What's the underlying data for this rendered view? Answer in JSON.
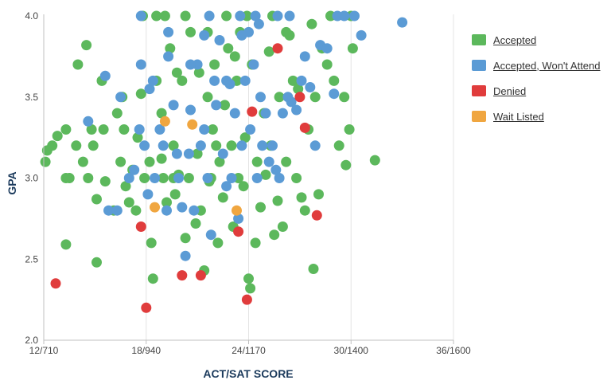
{
  "chart_data": {
    "type": "scatter",
    "xlabel": "ACT/SAT SCORE",
    "ylabel": "GPA",
    "xlim": [
      12,
      36
    ],
    "ylim": [
      2.0,
      4.0
    ],
    "x_tick_labels": [
      "12/710",
      "18/940",
      "24/1170",
      "30/1400",
      "36/1600"
    ],
    "x_tick_values": [
      12,
      18,
      24,
      30,
      36
    ],
    "y_tick_labels": [
      "2.0",
      "2.5",
      "3.0",
      "3.5",
      "4.0"
    ],
    "y_tick_values": [
      2.0,
      2.5,
      3.0,
      3.5,
      4.0
    ],
    "grid": "vertical",
    "legend_position": "right",
    "series": [
      {
        "name": "Accepted",
        "color": "#5cb85c",
        "points": [
          [
            12.1,
            3.1
          ],
          [
            12.2,
            3.17
          ],
          [
            12.5,
            3.2
          ],
          [
            12.8,
            3.26
          ],
          [
            13.3,
            3.3
          ],
          [
            13.3,
            3.0
          ],
          [
            13.5,
            3.0
          ],
          [
            13.3,
            2.59
          ],
          [
            13.9,
            3.2
          ],
          [
            14.0,
            3.7
          ],
          [
            14.3,
            3.1
          ],
          [
            14.5,
            3.82
          ],
          [
            14.8,
            3.3
          ],
          [
            14.6,
            3.0
          ],
          [
            14.9,
            3.2
          ],
          [
            15.1,
            2.87
          ],
          [
            15.1,
            2.48
          ],
          [
            15.4,
            3.6
          ],
          [
            15.5,
            3.3
          ],
          [
            15.6,
            2.98
          ],
          [
            16.1,
            2.8
          ],
          [
            16.3,
            3.4
          ],
          [
            16.5,
            3.1
          ],
          [
            16.6,
            3.5
          ],
          [
            16.7,
            3.3
          ],
          [
            16.8,
            2.95
          ],
          [
            17.0,
            2.85
          ],
          [
            17.2,
            3.05
          ],
          [
            17.4,
            2.8
          ],
          [
            17.5,
            3.25
          ],
          [
            17.7,
            3.52
          ],
          [
            17.9,
            3.0
          ],
          [
            18.2,
            3.1
          ],
          [
            18.3,
            2.6
          ],
          [
            18.4,
            2.38
          ],
          [
            18.6,
            3.6
          ],
          [
            18.9,
            3.4
          ],
          [
            19.0,
            3.0
          ],
          [
            19.2,
            2.85
          ],
          [
            19.4,
            3.8
          ],
          [
            19.6,
            3.2
          ],
          [
            19.7,
            2.9
          ],
          [
            19.9,
            3.02
          ],
          [
            20.1,
            3.6
          ],
          [
            20.3,
            2.63
          ],
          [
            20.5,
            3.0
          ],
          [
            20.6,
            3.9
          ],
          [
            20.9,
            2.72
          ],
          [
            21.0,
            3.15
          ],
          [
            21.2,
            2.8
          ],
          [
            21.4,
            2.43
          ],
          [
            21.6,
            3.5
          ],
          [
            21.7,
            2.98
          ],
          [
            21.9,
            3.3
          ],
          [
            22.0,
            3.7
          ],
          [
            22.2,
            2.6
          ],
          [
            22.3,
            3.1
          ],
          [
            22.5,
            2.88
          ],
          [
            22.6,
            3.45
          ],
          [
            22.8,
            3.8
          ],
          [
            23.0,
            3.2
          ],
          [
            23.1,
            2.7
          ],
          [
            23.3,
            3.6
          ],
          [
            23.4,
            3.0
          ],
          [
            23.5,
            3.9
          ],
          [
            23.7,
            2.95
          ],
          [
            23.8,
            3.25
          ],
          [
            24.0,
            2.38
          ],
          [
            24.1,
            2.32
          ],
          [
            24.2,
            3.7
          ],
          [
            24.4,
            2.6
          ],
          [
            24.5,
            3.1
          ],
          [
            24.7,
            2.82
          ],
          [
            24.9,
            3.4
          ],
          [
            25.0,
            3.02
          ],
          [
            25.2,
            3.78
          ],
          [
            25.3,
            3.2
          ],
          [
            25.5,
            2.65
          ],
          [
            25.7,
            2.86
          ],
          [
            25.8,
            3.5
          ],
          [
            26.0,
            2.7
          ],
          [
            26.2,
            3.1
          ],
          [
            26.4,
            3.88
          ],
          [
            26.6,
            3.6
          ],
          [
            26.8,
            3.0
          ],
          [
            26.9,
            3.55
          ],
          [
            27.1,
            2.88
          ],
          [
            27.3,
            2.8
          ],
          [
            27.5,
            3.3
          ],
          [
            27.7,
            3.95
          ],
          [
            27.8,
            2.44
          ],
          [
            27.9,
            3.5
          ],
          [
            28.1,
            2.9
          ],
          [
            28.3,
            3.8
          ],
          [
            28.6,
            3.7
          ],
          [
            29.0,
            3.6
          ],
          [
            29.3,
            3.2
          ],
          [
            29.6,
            3.5
          ],
          [
            29.7,
            3.08
          ],
          [
            29.9,
            3.3
          ],
          [
            30.0,
            4.0
          ],
          [
            30.1,
            3.8
          ],
          [
            31.4,
            3.11
          ],
          [
            26.2,
            3.9
          ],
          [
            21.1,
            3.65
          ],
          [
            21.6,
            3.9
          ],
          [
            19.8,
            3.65
          ],
          [
            22.7,
            4.0
          ],
          [
            20.3,
            4.0
          ],
          [
            25.4,
            4.0
          ],
          [
            23.9,
            4.0
          ],
          [
            28.8,
            4.0
          ],
          [
            18.6,
            4.0
          ],
          [
            19.1,
            4.0
          ],
          [
            17.8,
            4.0
          ],
          [
            23.2,
            3.75
          ],
          [
            18.9,
            3.12
          ],
          [
            19.6,
            3.0
          ],
          [
            21.8,
            3.0
          ],
          [
            22.1,
            3.2
          ]
        ]
      },
      {
        "name": "Accepted, Won't Attend",
        "color": "#5b9bd5",
        "points": [
          [
            14.6,
            3.35
          ],
          [
            15.6,
            3.63
          ],
          [
            15.8,
            2.8
          ],
          [
            16.3,
            2.8
          ],
          [
            16.5,
            3.5
          ],
          [
            17.0,
            3.0
          ],
          [
            17.3,
            3.05
          ],
          [
            17.6,
            3.3
          ],
          [
            17.9,
            3.2
          ],
          [
            18.1,
            2.9
          ],
          [
            18.2,
            3.55
          ],
          [
            18.4,
            3.6
          ],
          [
            18.5,
            3.0
          ],
          [
            18.8,
            3.3
          ],
          [
            19.0,
            3.2
          ],
          [
            19.2,
            2.8
          ],
          [
            19.3,
            3.75
          ],
          [
            19.6,
            3.45
          ],
          [
            19.9,
            3.0
          ],
          [
            20.1,
            2.82
          ],
          [
            20.3,
            2.52
          ],
          [
            20.5,
            3.15
          ],
          [
            20.6,
            3.42
          ],
          [
            20.8,
            2.8
          ],
          [
            21.0,
            3.7
          ],
          [
            21.2,
            3.2
          ],
          [
            21.4,
            3.3
          ],
          [
            21.6,
            3.0
          ],
          [
            21.8,
            2.65
          ],
          [
            22.0,
            3.6
          ],
          [
            22.1,
            3.45
          ],
          [
            22.3,
            3.85
          ],
          [
            22.5,
            3.15
          ],
          [
            22.7,
            2.95
          ],
          [
            22.9,
            3.58
          ],
          [
            23.0,
            3.0
          ],
          [
            23.2,
            3.4
          ],
          [
            23.4,
            2.75
          ],
          [
            23.6,
            3.2
          ],
          [
            23.8,
            3.6
          ],
          [
            24.0,
            3.9
          ],
          [
            24.1,
            3.3
          ],
          [
            24.3,
            3.7
          ],
          [
            24.5,
            3.0
          ],
          [
            24.7,
            3.5
          ],
          [
            24.8,
            3.2
          ],
          [
            25.0,
            3.4
          ],
          [
            25.2,
            3.1
          ],
          [
            25.4,
            3.2
          ],
          [
            25.6,
            3.05
          ],
          [
            25.8,
            3.0
          ],
          [
            26.0,
            3.4
          ],
          [
            26.3,
            3.5
          ],
          [
            26.5,
            3.47
          ],
          [
            26.8,
            3.42
          ],
          [
            27.1,
            3.6
          ],
          [
            27.3,
            3.75
          ],
          [
            27.6,
            3.56
          ],
          [
            27.9,
            3.2
          ],
          [
            28.2,
            3.82
          ],
          [
            28.6,
            3.8
          ],
          [
            29.0,
            3.52
          ],
          [
            19.3,
            3.9
          ],
          [
            21.4,
            3.88
          ],
          [
            24.6,
            3.95
          ],
          [
            22.7,
            3.6
          ],
          [
            20.6,
            3.7
          ],
          [
            17.7,
            3.7
          ],
          [
            33.0,
            3.96
          ],
          [
            30.6,
            3.88
          ],
          [
            23.6,
            3.88
          ],
          [
            19.8,
            3.15
          ],
          [
            17.7,
            4.0
          ],
          [
            23.5,
            4.0
          ],
          [
            24.4,
            4.0
          ],
          [
            25.7,
            4.0
          ],
          [
            26.4,
            4.0
          ],
          [
            29.2,
            4.0
          ],
          [
            30.2,
            4.0
          ],
          [
            29.6,
            4.0
          ],
          [
            21.7,
            4.0
          ]
        ]
      },
      {
        "name": "Denied",
        "color": "#e03c3c",
        "points": [
          [
            12.7,
            2.35
          ],
          [
            17.7,
            2.7
          ],
          [
            18.0,
            2.2
          ],
          [
            20.1,
            2.4
          ],
          [
            21.2,
            2.4
          ],
          [
            23.4,
            2.67
          ],
          [
            23.9,
            2.25
          ],
          [
            24.2,
            3.41
          ],
          [
            27.0,
            3.5
          ],
          [
            27.3,
            3.31
          ],
          [
            28.0,
            2.77
          ],
          [
            25.7,
            3.8
          ]
        ]
      },
      {
        "name": "Wait Listed",
        "color": "#f0a640",
        "points": [
          [
            18.5,
            2.82
          ],
          [
            19.1,
            3.35
          ],
          [
            20.7,
            3.33
          ],
          [
            23.3,
            2.8
          ]
        ]
      }
    ]
  }
}
